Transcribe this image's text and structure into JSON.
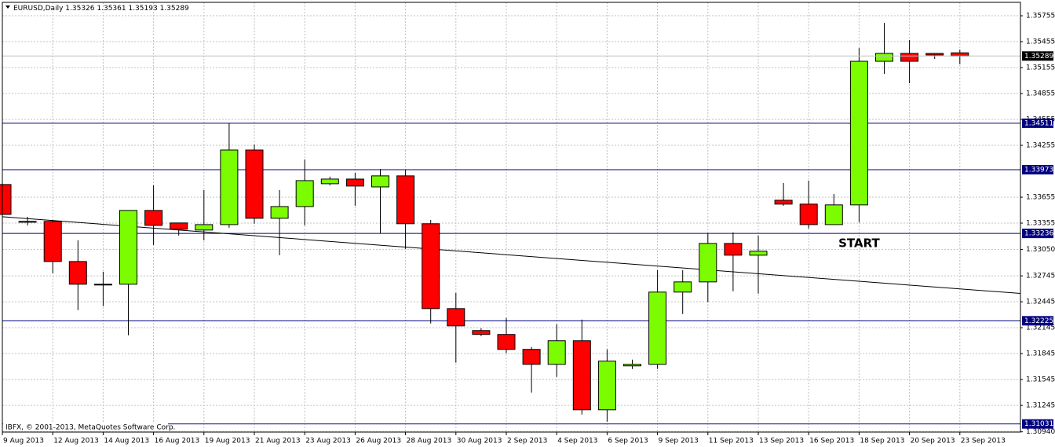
{
  "chart_data": {
    "type": "candlestick",
    "title": "EURUSD,Daily",
    "watermark": "IBFX, © 2001-2013, MetaQuotes Software Corp.",
    "categories": [
      "9 Aug 2013",
      null,
      "12 Aug 2013",
      null,
      "14 Aug 2013",
      null,
      "16 Aug 2013",
      null,
      "19 Aug 2013",
      null,
      "21 Aug 2013",
      null,
      "23 Aug 2013",
      null,
      "26 Aug 2013",
      null,
      "28 Aug 2013",
      null,
      "30 Aug 2013",
      null,
      "2 Sep 2013",
      null,
      "4 Sep 2013",
      null,
      "6 Sep 2013",
      null,
      "9 Sep 2013",
      null,
      "11 Sep 2013",
      null,
      "13 Sep 2013",
      null,
      "16 Sep 2013",
      null,
      "18 Sep 2013",
      null,
      "20 Sep 2013",
      null,
      "23 Sep 2013"
    ],
    "open": [
      1.33802,
      1.33375,
      1.33375,
      1.32911,
      1.32648,
      1.32648,
      1.33502,
      1.33357,
      1.33275,
      1.33338,
      1.34201,
      1.33411,
      1.33547,
      1.33811,
      1.33865,
      1.33774,
      1.33902,
      1.33348,
      1.32366,
      1.32112,
      1.32067,
      1.31894,
      1.31721,
      1.31994,
      1.31194,
      1.31703,
      1.31721,
      1.32557,
      1.32675,
      1.3312,
      1.32984,
      1.3362,
      1.33575,
      1.33338,
      1.33566,
      1.35228,
      1.35319,
      1.35319,
      1.35326
    ],
    "high": [
      1.33893,
      1.33429,
      1.33393,
      1.33157,
      1.32793,
      1.33502,
      1.33793,
      1.33357,
      1.33738,
      1.3451,
      1.34265,
      1.33738,
      1.34092,
      1.33893,
      1.33938,
      1.33983,
      1.33974,
      1.33393,
      1.32548,
      1.32139,
      1.32257,
      1.31921,
      1.32185,
      1.32239,
      1.31894,
      1.31776,
      1.32811,
      1.32811,
      1.33239,
      1.33248,
      1.33211,
      1.3382,
      1.33847,
      1.33693,
      1.35382,
      1.35673,
      1.35473,
      1.35319,
      1.35361
    ],
    "low": [
      1.33302,
      1.33329,
      1.32775,
      1.32348,
      1.32394,
      1.32058,
      1.33102,
      1.33211,
      1.33157,
      1.33302,
      1.33348,
      1.32984,
      1.33329,
      1.33793,
      1.33556,
      1.33239,
      1.33057,
      1.32194,
      1.3174,
      1.32048,
      1.31849,
      1.31394,
      1.31576,
      1.3114,
      1.31058,
      1.31667,
      1.31667,
      1.32303,
      1.32439,
      1.32566,
      1.32539,
      1.33556,
      1.33293,
      1.33338,
      1.33366,
      1.35083,
      1.34974,
      1.35255,
      1.35193
    ],
    "close": [
      1.33456,
      1.33366,
      1.32911,
      1.32648,
      1.32648,
      1.33502,
      1.33329,
      1.33284,
      1.33338,
      1.34201,
      1.33411,
      1.33547,
      1.33847,
      1.33865,
      1.33784,
      1.33902,
      1.33348,
      1.32366,
      1.32166,
      1.32067,
      1.31894,
      1.31721,
      1.31994,
      1.31194,
      1.31758,
      1.31721,
      1.32557,
      1.32675,
      1.3312,
      1.32984,
      1.3303,
      1.33575,
      1.33338,
      1.33566,
      1.35228,
      1.35319,
      1.35228,
      1.35301,
      1.35289
    ],
    "up_color": "#7cfc00",
    "down_color": "#ff0000",
    "ylim": [
      1.30937,
      1.3591
    ],
    "yticks": [
      1.35755,
      1.35455,
      1.35155,
      1.34855,
      1.34555,
      1.34255,
      1.33655,
      1.33355,
      {
        "value": 1.3305,
        "label": "1.33050"
      },
      1.32745,
      1.32445,
      1.32145,
      1.31845,
      1.31545,
      1.31245,
      {
        "value": 1.3094,
        "label": "1.30940"
      }
    ],
    "grid": true,
    "hlines": [
      1.34511,
      1.33973,
      1.33236,
      1.32225,
      1.31031
    ],
    "hline_color": "#000080",
    "trendline": {
      "x": [
        0,
        38
      ],
      "y": [
        1.33429,
        1.32594
      ],
      "color": "#000000"
    },
    "annotations": [
      {
        "text": "START",
        "x": 34,
        "y": 1.3312
      }
    ]
  }
}
